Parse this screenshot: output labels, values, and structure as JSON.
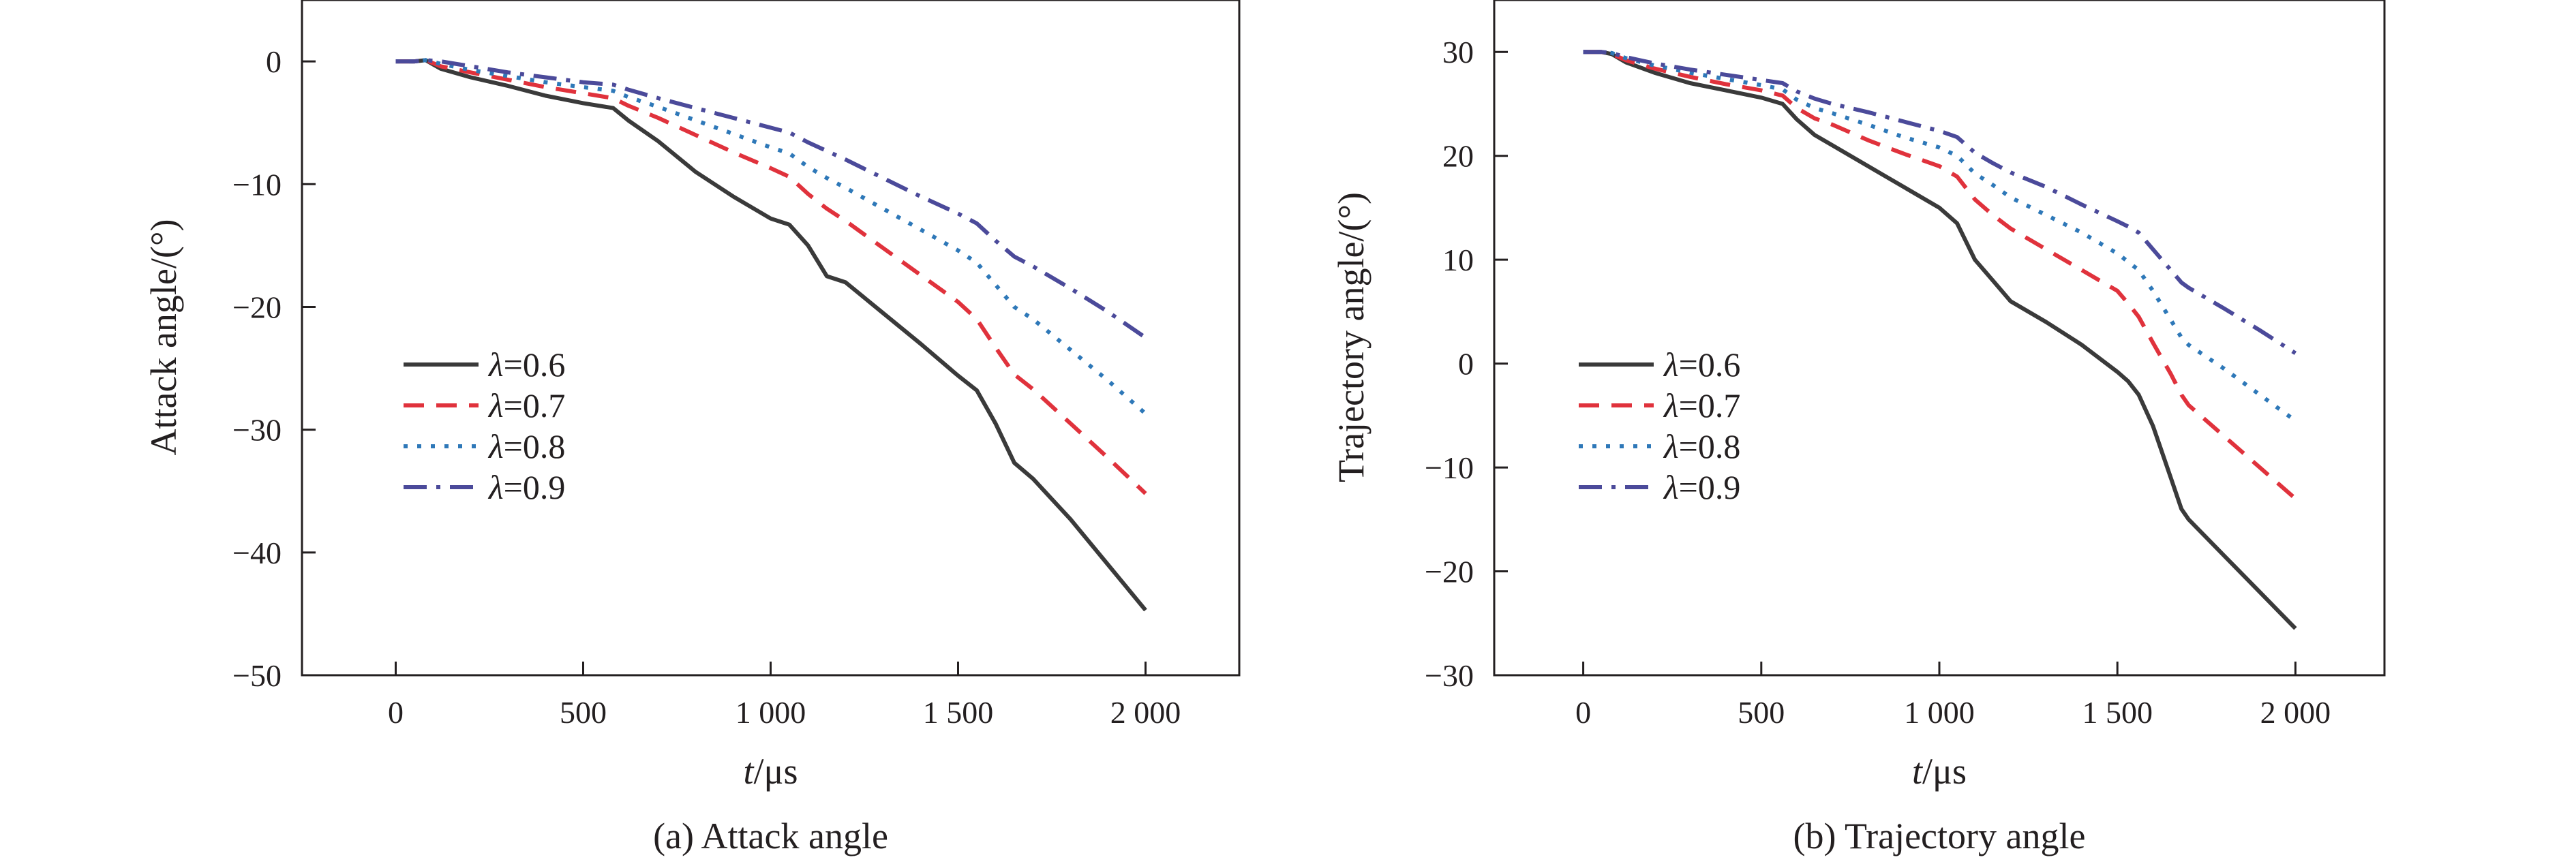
{
  "colors": {
    "lambda_0_6": "#3a3a3a",
    "lambda_0_7": "#e0323c",
    "lambda_0_8": "#2e78b8",
    "lambda_0_9": "#4b4a9a",
    "axis": "#231f20"
  },
  "chart_data": [
    {
      "type": "line",
      "caption": "(a) Attack angle",
      "xlabel_italic": "t",
      "xlabel_unit": "/μs",
      "ylabel": "Attack angle/(°)",
      "xlim": [
        -250,
        2250
      ],
      "ylim": [
        -50,
        5
      ],
      "xticks": [
        0,
        500,
        1000,
        1500,
        2000
      ],
      "xtick_labels": [
        "0",
        "500",
        "1 000",
        "1 500",
        "2 000"
      ],
      "yticks": [
        0,
        -10,
        -20,
        -30,
        -40,
        -50
      ],
      "ytick_labels": [
        "0",
        "−10",
        "−20",
        "−30",
        "−40",
        "−50"
      ],
      "legend_position": "center-left",
      "series": [
        {
          "name": "λ=0.6",
          "symbol": "λ",
          "value_text": "=0.6",
          "style": "solid",
          "color_key": "lambda_0_6",
          "x": [
            0,
            50,
            80,
            120,
            200,
            300,
            400,
            500,
            580,
            620,
            700,
            800,
            900,
            1000,
            1050,
            1100,
            1150,
            1200,
            1300,
            1400,
            1500,
            1550,
            1600,
            1650,
            1700,
            1800,
            1900,
            2000
          ],
          "y": [
            0,
            0,
            0.1,
            -0.6,
            -1.3,
            -2,
            -2.8,
            -3.4,
            -3.8,
            -4.8,
            -6.5,
            -9,
            -11,
            -12.8,
            -13.3,
            -15,
            -17.5,
            -18,
            -20.5,
            -23,
            -25.6,
            -26.8,
            -29.5,
            -32.7,
            -34,
            -37.3,
            -41,
            -44.7
          ]
        },
        {
          "name": "λ=0.7",
          "symbol": "λ",
          "value_text": "=0.7",
          "style": "dashed",
          "color_key": "lambda_0_7",
          "x": [
            0,
            50,
            80,
            120,
            200,
            300,
            400,
            500,
            580,
            620,
            700,
            800,
            900,
            1000,
            1050,
            1100,
            1150,
            1200,
            1300,
            1400,
            1500,
            1550,
            1600,
            1650,
            1700,
            1800,
            1900,
            2000
          ],
          "y": [
            0,
            0,
            0.1,
            -0.4,
            -0.9,
            -1.5,
            -2.1,
            -2.6,
            -3.0,
            -3.6,
            -4.6,
            -6,
            -7.4,
            -8.7,
            -9.4,
            -10.8,
            -12,
            -13,
            -15.2,
            -17.4,
            -19.6,
            -21,
            -23.3,
            -25.5,
            -26.7,
            -29.5,
            -32.3,
            -35.2
          ]
        },
        {
          "name": "λ=0.8",
          "symbol": "λ",
          "value_text": "=0.8",
          "style": "dotted",
          "color_key": "lambda_0_8",
          "x": [
            0,
            50,
            80,
            120,
            200,
            300,
            400,
            500,
            580,
            620,
            700,
            800,
            900,
            1000,
            1050,
            1100,
            1150,
            1200,
            1300,
            1400,
            1500,
            1550,
            1600,
            1650,
            1700,
            1800,
            1900,
            2000
          ],
          "y": [
            0,
            0,
            0.1,
            -0.2,
            -0.7,
            -1.2,
            -1.7,
            -2.1,
            -2.4,
            -2.9,
            -3.7,
            -4.8,
            -5.9,
            -7,
            -7.5,
            -8.6,
            -9.5,
            -10.3,
            -12,
            -13.7,
            -15.4,
            -16.4,
            -18.2,
            -20,
            -21,
            -23.5,
            -26,
            -28.7
          ]
        },
        {
          "name": "λ=0.9",
          "symbol": "λ",
          "value_text": "=0.9",
          "style": "dashdot",
          "color_key": "lambda_0_9",
          "x": [
            0,
            50,
            80,
            120,
            200,
            300,
            400,
            500,
            580,
            620,
            700,
            800,
            900,
            1000,
            1050,
            1100,
            1150,
            1200,
            1300,
            1400,
            1500,
            1550,
            1600,
            1650,
            1700,
            1800,
            1900,
            2000
          ],
          "y": [
            0,
            0,
            0.1,
            0,
            -0.4,
            -0.9,
            -1.3,
            -1.7,
            -1.9,
            -2.3,
            -3.0,
            -3.8,
            -4.6,
            -5.4,
            -5.8,
            -6.6,
            -7.3,
            -8,
            -9.5,
            -11,
            -12.4,
            -13.2,
            -14.6,
            -15.9,
            -16.7,
            -18.5,
            -20.4,
            -22.5
          ]
        }
      ]
    },
    {
      "type": "line",
      "caption": "(b) Trajectory angle",
      "xlabel_italic": "t",
      "xlabel_unit": "/μs",
      "ylabel": "Trajectory angle/(°)",
      "xlim": [
        -250,
        2250
      ],
      "ylim": [
        -30,
        35
      ],
      "xticks": [
        0,
        500,
        1000,
        1500,
        2000
      ],
      "xtick_labels": [
        "0",
        "500",
        "1 000",
        "1 500",
        "2 000"
      ],
      "yticks": [
        30,
        20,
        10,
        0,
        -10,
        -20,
        -30
      ],
      "ytick_labels": [
        "30",
        "20",
        "10",
        "0",
        "−10",
        "−20",
        "−30"
      ],
      "legend_position": "center-left",
      "series": [
        {
          "name": "λ=0.6",
          "symbol": "λ",
          "value_text": "=0.6",
          "style": "solid",
          "color_key": "lambda_0_6",
          "x": [
            0,
            50,
            80,
            120,
            200,
            300,
            400,
            500,
            560,
            600,
            650,
            700,
            800,
            900,
            1000,
            1050,
            1100,
            1150,
            1200,
            1300,
            1400,
            1500,
            1530,
            1560,
            1600,
            1650,
            1680,
            1700,
            1800,
            1900,
            2000
          ],
          "y": [
            30,
            30,
            29.8,
            29,
            28,
            27,
            26.3,
            25.6,
            25,
            23.5,
            22,
            21,
            19,
            17,
            15,
            13.5,
            10,
            8,
            6,
            4,
            1.8,
            -0.8,
            -1.7,
            -3,
            -6,
            -11,
            -14,
            -15,
            -18.5,
            -22,
            -25.5
          ]
        },
        {
          "name": "λ=0.7",
          "symbol": "λ",
          "value_text": "=0.7",
          "style": "dashed",
          "color_key": "lambda_0_7",
          "x": [
            0,
            50,
            80,
            120,
            200,
            300,
            400,
            500,
            560,
            600,
            650,
            700,
            800,
            900,
            1000,
            1050,
            1100,
            1150,
            1200,
            1300,
            1400,
            1500,
            1530,
            1560,
            1600,
            1650,
            1680,
            1700,
            1800,
            1900,
            2000
          ],
          "y": [
            30,
            30,
            29.8,
            29.2,
            28.4,
            27.6,
            26.9,
            26.3,
            25.8,
            24.6,
            23.6,
            23,
            21.5,
            20.2,
            19,
            18,
            15.8,
            14.3,
            13,
            11,
            9,
            7,
            5.8,
            4.5,
            2,
            -1,
            -3,
            -4,
            -7,
            -10,
            -13
          ]
        },
        {
          "name": "λ=0.8",
          "symbol": "λ",
          "value_text": "=0.8",
          "style": "dotted",
          "color_key": "lambda_0_8",
          "x": [
            0,
            50,
            80,
            120,
            200,
            300,
            400,
            500,
            560,
            600,
            650,
            700,
            800,
            900,
            1000,
            1050,
            1100,
            1150,
            1200,
            1300,
            1400,
            1500,
            1530,
            1560,
            1600,
            1650,
            1680,
            1700,
            1800,
            1900,
            2000
          ],
          "y": [
            30,
            30,
            29.9,
            29.4,
            28.7,
            28,
            27.4,
            26.8,
            26.4,
            25.4,
            24.6,
            24.1,
            23,
            21.8,
            20.8,
            20,
            18.3,
            17.2,
            16,
            14.3,
            12.6,
            10.6,
            9.8,
            9,
            7,
            4.2,
            2.5,
            1.8,
            -0.5,
            -3,
            -5.5
          ]
        },
        {
          "name": "λ=0.9",
          "symbol": "λ",
          "value_text": "=0.9",
          "style": "dashdot",
          "color_key": "lambda_0_9",
          "x": [
            0,
            50,
            80,
            120,
            200,
            300,
            400,
            500,
            560,
            600,
            650,
            700,
            800,
            900,
            1000,
            1050,
            1100,
            1150,
            1200,
            1300,
            1400,
            1500,
            1530,
            1560,
            1600,
            1650,
            1680,
            1700,
            1800,
            1900,
            2000
          ],
          "y": [
            30,
            30,
            29.9,
            29.5,
            28.9,
            28.3,
            27.8,
            27.3,
            27,
            26.2,
            25.5,
            25,
            24.2,
            23.3,
            22.4,
            21.8,
            20.3,
            19.3,
            18.4,
            17,
            15.3,
            13.7,
            13.2,
            12.6,
            11,
            9,
            7.8,
            7.3,
            5.3,
            3.2,
            1
          ]
        }
      ]
    }
  ]
}
